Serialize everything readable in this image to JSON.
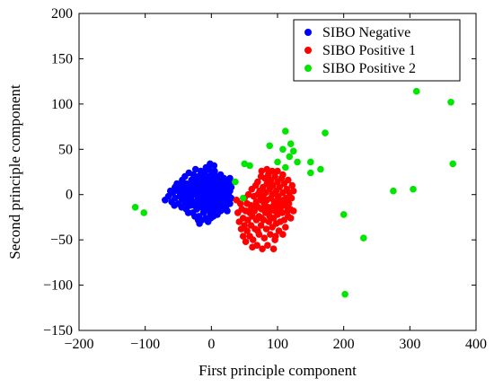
{
  "chart_data": {
    "type": "scatter",
    "title": "",
    "xlabel": "First principle component",
    "ylabel": "Second principle component",
    "xlim": [
      -200,
      400
    ],
    "ylim": [
      -150,
      200
    ],
    "xticks": [
      -200,
      -100,
      0,
      100,
      200,
      300,
      400
    ],
    "yticks": [
      -150,
      -100,
      -50,
      0,
      50,
      100,
      150,
      200
    ],
    "grid": false,
    "legend_position": "top-right",
    "series": [
      {
        "name": "SIBO Negative",
        "color": "#0000ff",
        "points": [
          [
            -70,
            -6
          ],
          [
            -65,
            -2
          ],
          [
            -62,
            4
          ],
          [
            -60,
            -8
          ],
          [
            -58,
            2
          ],
          [
            -55,
            8
          ],
          [
            -55,
            -4
          ],
          [
            -52,
            12
          ],
          [
            -50,
            -10
          ],
          [
            -50,
            4
          ],
          [
            -48,
            -2
          ],
          [
            -46,
            10
          ],
          [
            -45,
            -14
          ],
          [
            -44,
            16
          ],
          [
            -42,
            0
          ],
          [
            -42,
            6
          ],
          [
            -40,
            -8
          ],
          [
            -40,
            20
          ],
          [
            -38,
            -16
          ],
          [
            -38,
            12
          ],
          [
            -36,
            2
          ],
          [
            -35,
            -4
          ],
          [
            -34,
            24
          ],
          [
            -33,
            8
          ],
          [
            -32,
            -12
          ],
          [
            -30,
            16
          ],
          [
            -30,
            -2
          ],
          [
            -28,
            4
          ],
          [
            -28,
            -20
          ],
          [
            -27,
            22
          ],
          [
            -26,
            10
          ],
          [
            -25,
            -8
          ],
          [
            -24,
            28
          ],
          [
            -23,
            0
          ],
          [
            -22,
            14
          ],
          [
            -22,
            -16
          ],
          [
            -21,
            6
          ],
          [
            -20,
            -4
          ],
          [
            -20,
            20
          ],
          [
            -19,
            -24
          ],
          [
            -18,
            12
          ],
          [
            -18,
            -10
          ],
          [
            -17,
            2
          ],
          [
            -16,
            26
          ],
          [
            -15,
            8
          ],
          [
            -15,
            -14
          ],
          [
            -14,
            -2
          ],
          [
            -14,
            18
          ],
          [
            -13,
            4
          ],
          [
            -12,
            -20
          ],
          [
            -12,
            10
          ],
          [
            -11,
            -6
          ],
          [
            -10,
            24
          ],
          [
            -10,
            0
          ],
          [
            -9,
            14
          ],
          [
            -9,
            -12
          ],
          [
            -8,
            6
          ],
          [
            -8,
            -26
          ],
          [
            -7,
            20
          ],
          [
            -6,
            -4
          ],
          [
            -6,
            12
          ],
          [
            -5,
            -16
          ],
          [
            -5,
            2
          ],
          [
            -4,
            28
          ],
          [
            -4,
            8
          ],
          [
            -3,
            -8
          ],
          [
            -3,
            16
          ],
          [
            -2,
            -2
          ],
          [
            -2,
            -20
          ],
          [
            -1,
            10
          ],
          [
            0,
            4
          ],
          [
            0,
            -12
          ],
          [
            0,
            22
          ],
          [
            1,
            -6
          ],
          [
            2,
            14
          ],
          [
            2,
            -18
          ],
          [
            3,
            0
          ],
          [
            3,
            8
          ],
          [
            4,
            -10
          ],
          [
            4,
            18
          ],
          [
            5,
            -2
          ],
          [
            5,
            26
          ],
          [
            6,
            6
          ],
          [
            6,
            -14
          ],
          [
            7,
            12
          ],
          [
            8,
            -6
          ],
          [
            8,
            20
          ],
          [
            9,
            2
          ],
          [
            9,
            -22
          ],
          [
            10,
            10
          ],
          [
            10,
            -8
          ],
          [
            11,
            16
          ],
          [
            12,
            0
          ],
          [
            12,
            -14
          ],
          [
            13,
            8
          ],
          [
            14,
            -4
          ],
          [
            14,
            22
          ],
          [
            15,
            4
          ],
          [
            16,
            -10
          ],
          [
            16,
            14
          ],
          [
            17,
            -2
          ],
          [
            18,
            8
          ],
          [
            18,
            -16
          ],
          [
            19,
            18
          ],
          [
            20,
            2
          ],
          [
            20,
            -8
          ],
          [
            21,
            12
          ],
          [
            22,
            -4
          ],
          [
            22,
            6
          ],
          [
            23,
            -12
          ],
          [
            24,
            16
          ],
          [
            24,
            0
          ],
          [
            25,
            8
          ],
          [
            26,
            -6
          ],
          [
            26,
            10
          ],
          [
            27,
            -2
          ],
          [
            28,
            4
          ],
          [
            28,
            -10
          ],
          [
            29,
            14
          ],
          [
            30,
            -4
          ],
          [
            -30,
            8
          ],
          [
            -26,
            -12
          ],
          [
            -22,
            4
          ],
          [
            -18,
            -2
          ],
          [
            -14,
            8
          ],
          [
            -10,
            -4
          ],
          [
            -6,
            4
          ],
          [
            -2,
            6
          ],
          [
            2,
            -4
          ],
          [
            6,
            2
          ],
          [
            -28,
            12
          ],
          [
            -20,
            14
          ],
          [
            -16,
            -6
          ],
          [
            -12,
            2
          ],
          [
            -8,
            -8
          ],
          [
            -4,
            -6
          ],
          [
            0,
            -2
          ],
          [
            4,
            4
          ],
          [
            8,
            0
          ],
          [
            12,
            6
          ],
          [
            -36,
            -10
          ],
          [
            -24,
            18
          ],
          [
            -16,
            20
          ],
          [
            -8,
            -16
          ],
          [
            0,
            12
          ],
          [
            8,
            -12
          ],
          [
            16,
            6
          ],
          [
            -44,
            -6
          ],
          [
            -32,
            -6
          ],
          [
            -20,
            -14
          ],
          [
            -2,
            34
          ],
          [
            4,
            32
          ],
          [
            -8,
            30
          ],
          [
            -14,
            -28
          ],
          [
            -20,
            -28
          ],
          [
            -1,
            -26
          ],
          [
            8,
            -20
          ],
          [
            14,
            -18
          ],
          [
            20,
            -14
          ],
          [
            -40,
            -12
          ],
          [
            -48,
            6
          ],
          [
            -56,
            -12
          ],
          [
            -35,
            -20
          ],
          [
            -25,
            -24
          ],
          [
            -5,
            -30
          ],
          [
            3,
            -24
          ],
          [
            -18,
            -32
          ],
          [
            24,
            -18
          ],
          [
            30,
            8
          ],
          [
            28,
            18
          ]
        ]
      },
      {
        "name": "SIBO Positive 1",
        "color": "#ff0000",
        "points": [
          [
            38,
            -6
          ],
          [
            40,
            -20
          ],
          [
            42,
            -30
          ],
          [
            44,
            -10
          ],
          [
            45,
            -38
          ],
          [
            46,
            -16
          ],
          [
            48,
            -26
          ],
          [
            50,
            -4
          ],
          [
            50,
            -34
          ],
          [
            52,
            -18
          ],
          [
            54,
            -40
          ],
          [
            54,
            -10
          ],
          [
            55,
            -28
          ],
          [
            56,
            0
          ],
          [
            58,
            -46
          ],
          [
            58,
            -20
          ],
          [
            60,
            -12
          ],
          [
            60,
            -34
          ],
          [
            61,
            6
          ],
          [
            62,
            -24
          ],
          [
            63,
            -50
          ],
          [
            64,
            -2
          ],
          [
            65,
            -18
          ],
          [
            66,
            -38
          ],
          [
            67,
            10
          ],
          [
            68,
            -8
          ],
          [
            68,
            -28
          ],
          [
            69,
            -56
          ],
          [
            70,
            14
          ],
          [
            70,
            0
          ],
          [
            71,
            -14
          ],
          [
            72,
            -44
          ],
          [
            72,
            -24
          ],
          [
            73,
            4
          ],
          [
            74,
            -6
          ],
          [
            75,
            20
          ],
          [
            75,
            -34
          ],
          [
            76,
            -16
          ],
          [
            77,
            -60
          ],
          [
            78,
            8
          ],
          [
            78,
            -2
          ],
          [
            79,
            -28
          ],
          [
            80,
            -10
          ],
          [
            80,
            -48
          ],
          [
            81,
            18
          ],
          [
            82,
            2
          ],
          [
            82,
            -20
          ],
          [
            83,
            -38
          ],
          [
            84,
            12
          ],
          [
            84,
            -6
          ],
          [
            85,
            -56
          ],
          [
            86,
            -14
          ],
          [
            86,
            22
          ],
          [
            87,
            -30
          ],
          [
            88,
            6
          ],
          [
            88,
            -24
          ],
          [
            89,
            -44
          ],
          [
            90,
            -4
          ],
          [
            90,
            16
          ],
          [
            91,
            -16
          ],
          [
            92,
            -36
          ],
          [
            92,
            0
          ],
          [
            93,
            10
          ],
          [
            94,
            -60
          ],
          [
            94,
            -26
          ],
          [
            95,
            -8
          ],
          [
            96,
            20
          ],
          [
            96,
            -18
          ],
          [
            97,
            -46
          ],
          [
            98,
            4
          ],
          [
            98,
            -32
          ],
          [
            99,
            -12
          ],
          [
            100,
            14
          ],
          [
            100,
            -22
          ],
          [
            101,
            -2
          ],
          [
            102,
            -40
          ],
          [
            103,
            8
          ],
          [
            104,
            -16
          ],
          [
            104,
            -30
          ],
          [
            105,
            -8
          ],
          [
            106,
            18
          ],
          [
            107,
            -20
          ],
          [
            108,
            2
          ],
          [
            108,
            -44
          ],
          [
            109,
            -6
          ],
          [
            110,
            12
          ],
          [
            110,
            -28
          ],
          [
            111,
            -12
          ],
          [
            112,
            -36
          ],
          [
            113,
            -4
          ],
          [
            114,
            6
          ],
          [
            115,
            -18
          ],
          [
            116,
            -24
          ],
          [
            117,
            -10
          ],
          [
            118,
            2
          ],
          [
            119,
            -16
          ],
          [
            120,
            -26
          ],
          [
            121,
            -4
          ],
          [
            122,
            10
          ],
          [
            124,
            -18
          ],
          [
            60,
            -16
          ],
          [
            66,
            -12
          ],
          [
            70,
            -40
          ],
          [
            76,
            -26
          ],
          [
            82,
            -14
          ],
          [
            88,
            -18
          ],
          [
            94,
            -12
          ],
          [
            100,
            -6
          ],
          [
            106,
            -10
          ],
          [
            76,
            26
          ],
          [
            84,
            28
          ],
          [
            92,
            26
          ],
          [
            100,
            26
          ],
          [
            108,
            22
          ],
          [
            116,
            16
          ],
          [
            124,
            4
          ],
          [
            96,
            -50
          ],
          [
            52,
            -52
          ],
          [
            48,
            -46
          ],
          [
            62,
            -58
          ]
        ]
      },
      {
        "name": "SIBO Positive 2",
        "color": "#00e600",
        "points": [
          [
            -115,
            -14
          ],
          [
            -102,
            -20
          ],
          [
            36,
            14
          ],
          [
            48,
            -4
          ],
          [
            50,
            34
          ],
          [
            58,
            32
          ],
          [
            88,
            54
          ],
          [
            100,
            36
          ],
          [
            108,
            50
          ],
          [
            112,
            30
          ],
          [
            112,
            70
          ],
          [
            118,
            42
          ],
          [
            120,
            56
          ],
          [
            124,
            48
          ],
          [
            130,
            36
          ],
          [
            150,
            24
          ],
          [
            150,
            36
          ],
          [
            165,
            28
          ],
          [
            172,
            68
          ],
          [
            200,
            -22
          ],
          [
            202,
            -110
          ],
          [
            230,
            -48
          ],
          [
            275,
            4
          ],
          [
            305,
            6
          ],
          [
            310,
            114
          ],
          [
            362,
            102
          ],
          [
            365,
            34
          ]
        ]
      }
    ]
  }
}
